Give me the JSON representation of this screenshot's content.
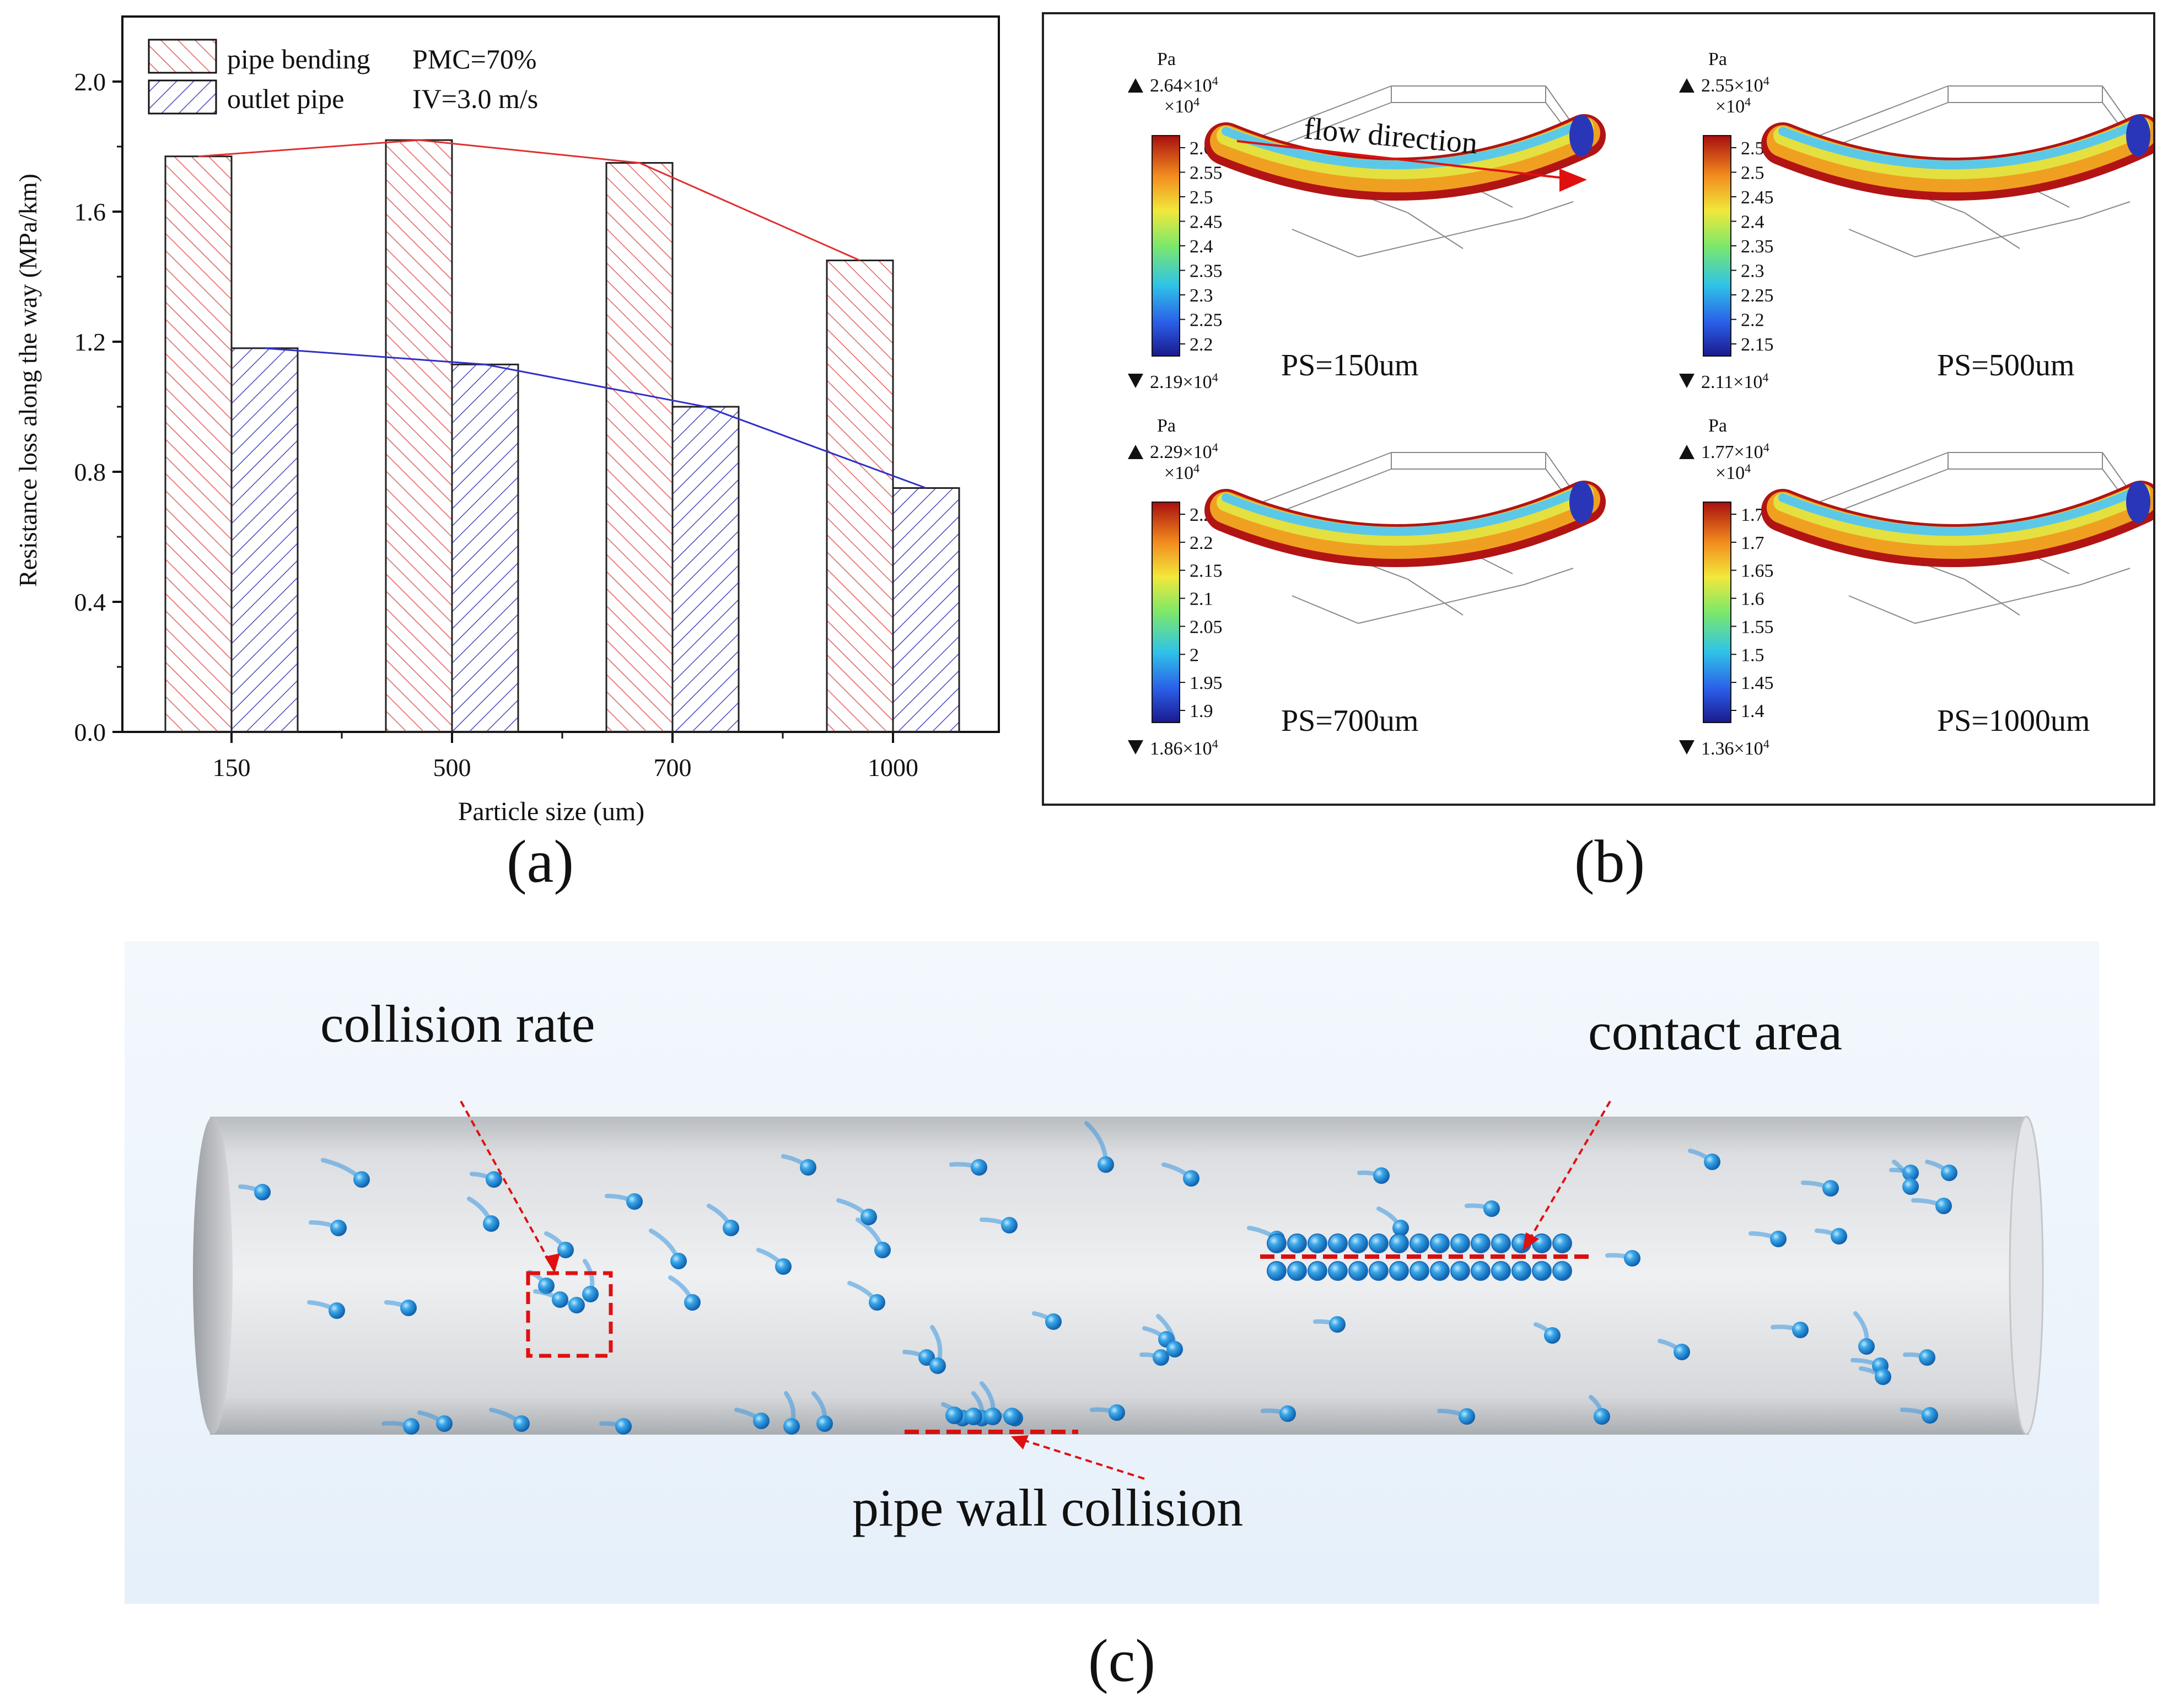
{
  "panel_labels": {
    "a": "(a)",
    "b": "(b)",
    "c": "(c)"
  },
  "chart_data": {
    "type": "bar",
    "categories": [
      "150",
      "500",
      "700",
      "1000"
    ],
    "series": [
      {
        "name": "pipe bending",
        "values": [
          1.77,
          1.82,
          1.75,
          1.45
        ],
        "color": "#e05050",
        "hatch": "right-diagonal"
      },
      {
        "name": "outlet pipe",
        "values": [
          1.18,
          1.13,
          1.0,
          0.75
        ],
        "color": "#3a3ab0",
        "hatch": "left-diagonal"
      }
    ],
    "trend_lines": [
      {
        "series": "pipe bending",
        "color": "#e03030",
        "values": [
          1.77,
          1.82,
          1.75,
          1.45
        ]
      },
      {
        "series": "outlet pipe",
        "color": "#3030c8",
        "values": [
          1.18,
          1.13,
          1.0,
          0.75
        ]
      }
    ],
    "xlabel": "Particle size (um)",
    "ylabel": "Resistance loss along the way (MPa/km)",
    "ylim": [
      0,
      2.2
    ],
    "yticks": [
      "0.0",
      "0.4",
      "0.8",
      "1.2",
      "1.6",
      "2.0"
    ],
    "annotations": [
      "PMC=70%",
      "IV=3.0 m/s"
    ],
    "legend_position": "top-left"
  },
  "panel_b": {
    "unit": "Pa",
    "flow_label": "flow direction",
    "scale_power": "×10",
    "exponent": "4",
    "plots": [
      {
        "label": "PS=150um",
        "max": "2.64×10",
        "min": "2.19×10",
        "ticks": [
          "2.6",
          "2.55",
          "2.5",
          "2.45",
          "2.4",
          "2.35",
          "2.3",
          "2.25",
          "2.2"
        ]
      },
      {
        "label": "PS=500um",
        "max": "2.55×10",
        "min": "2.11×10",
        "ticks": [
          "2.55",
          "2.5",
          "2.45",
          "2.4",
          "2.35",
          "2.3",
          "2.25",
          "2.2",
          "2.15"
        ]
      },
      {
        "label": "PS=700um",
        "max": "2.29×10",
        "min": "1.86×10",
        "ticks": [
          "2.25",
          "2.2",
          "2.15",
          "2.1",
          "2.05",
          "2",
          "1.95",
          "1.9"
        ]
      },
      {
        "label": "PS=1000um",
        "max": "1.77×10",
        "min": "1.36×10",
        "ticks": [
          "1.75",
          "1.7",
          "1.65",
          "1.6",
          "1.55",
          "1.5",
          "1.45",
          "1.4"
        ]
      }
    ]
  },
  "panel_c": {
    "label_collision_rate": "collision rate",
    "label_contact_area": "contact area",
    "label_wall_collision": "pipe wall collision"
  }
}
